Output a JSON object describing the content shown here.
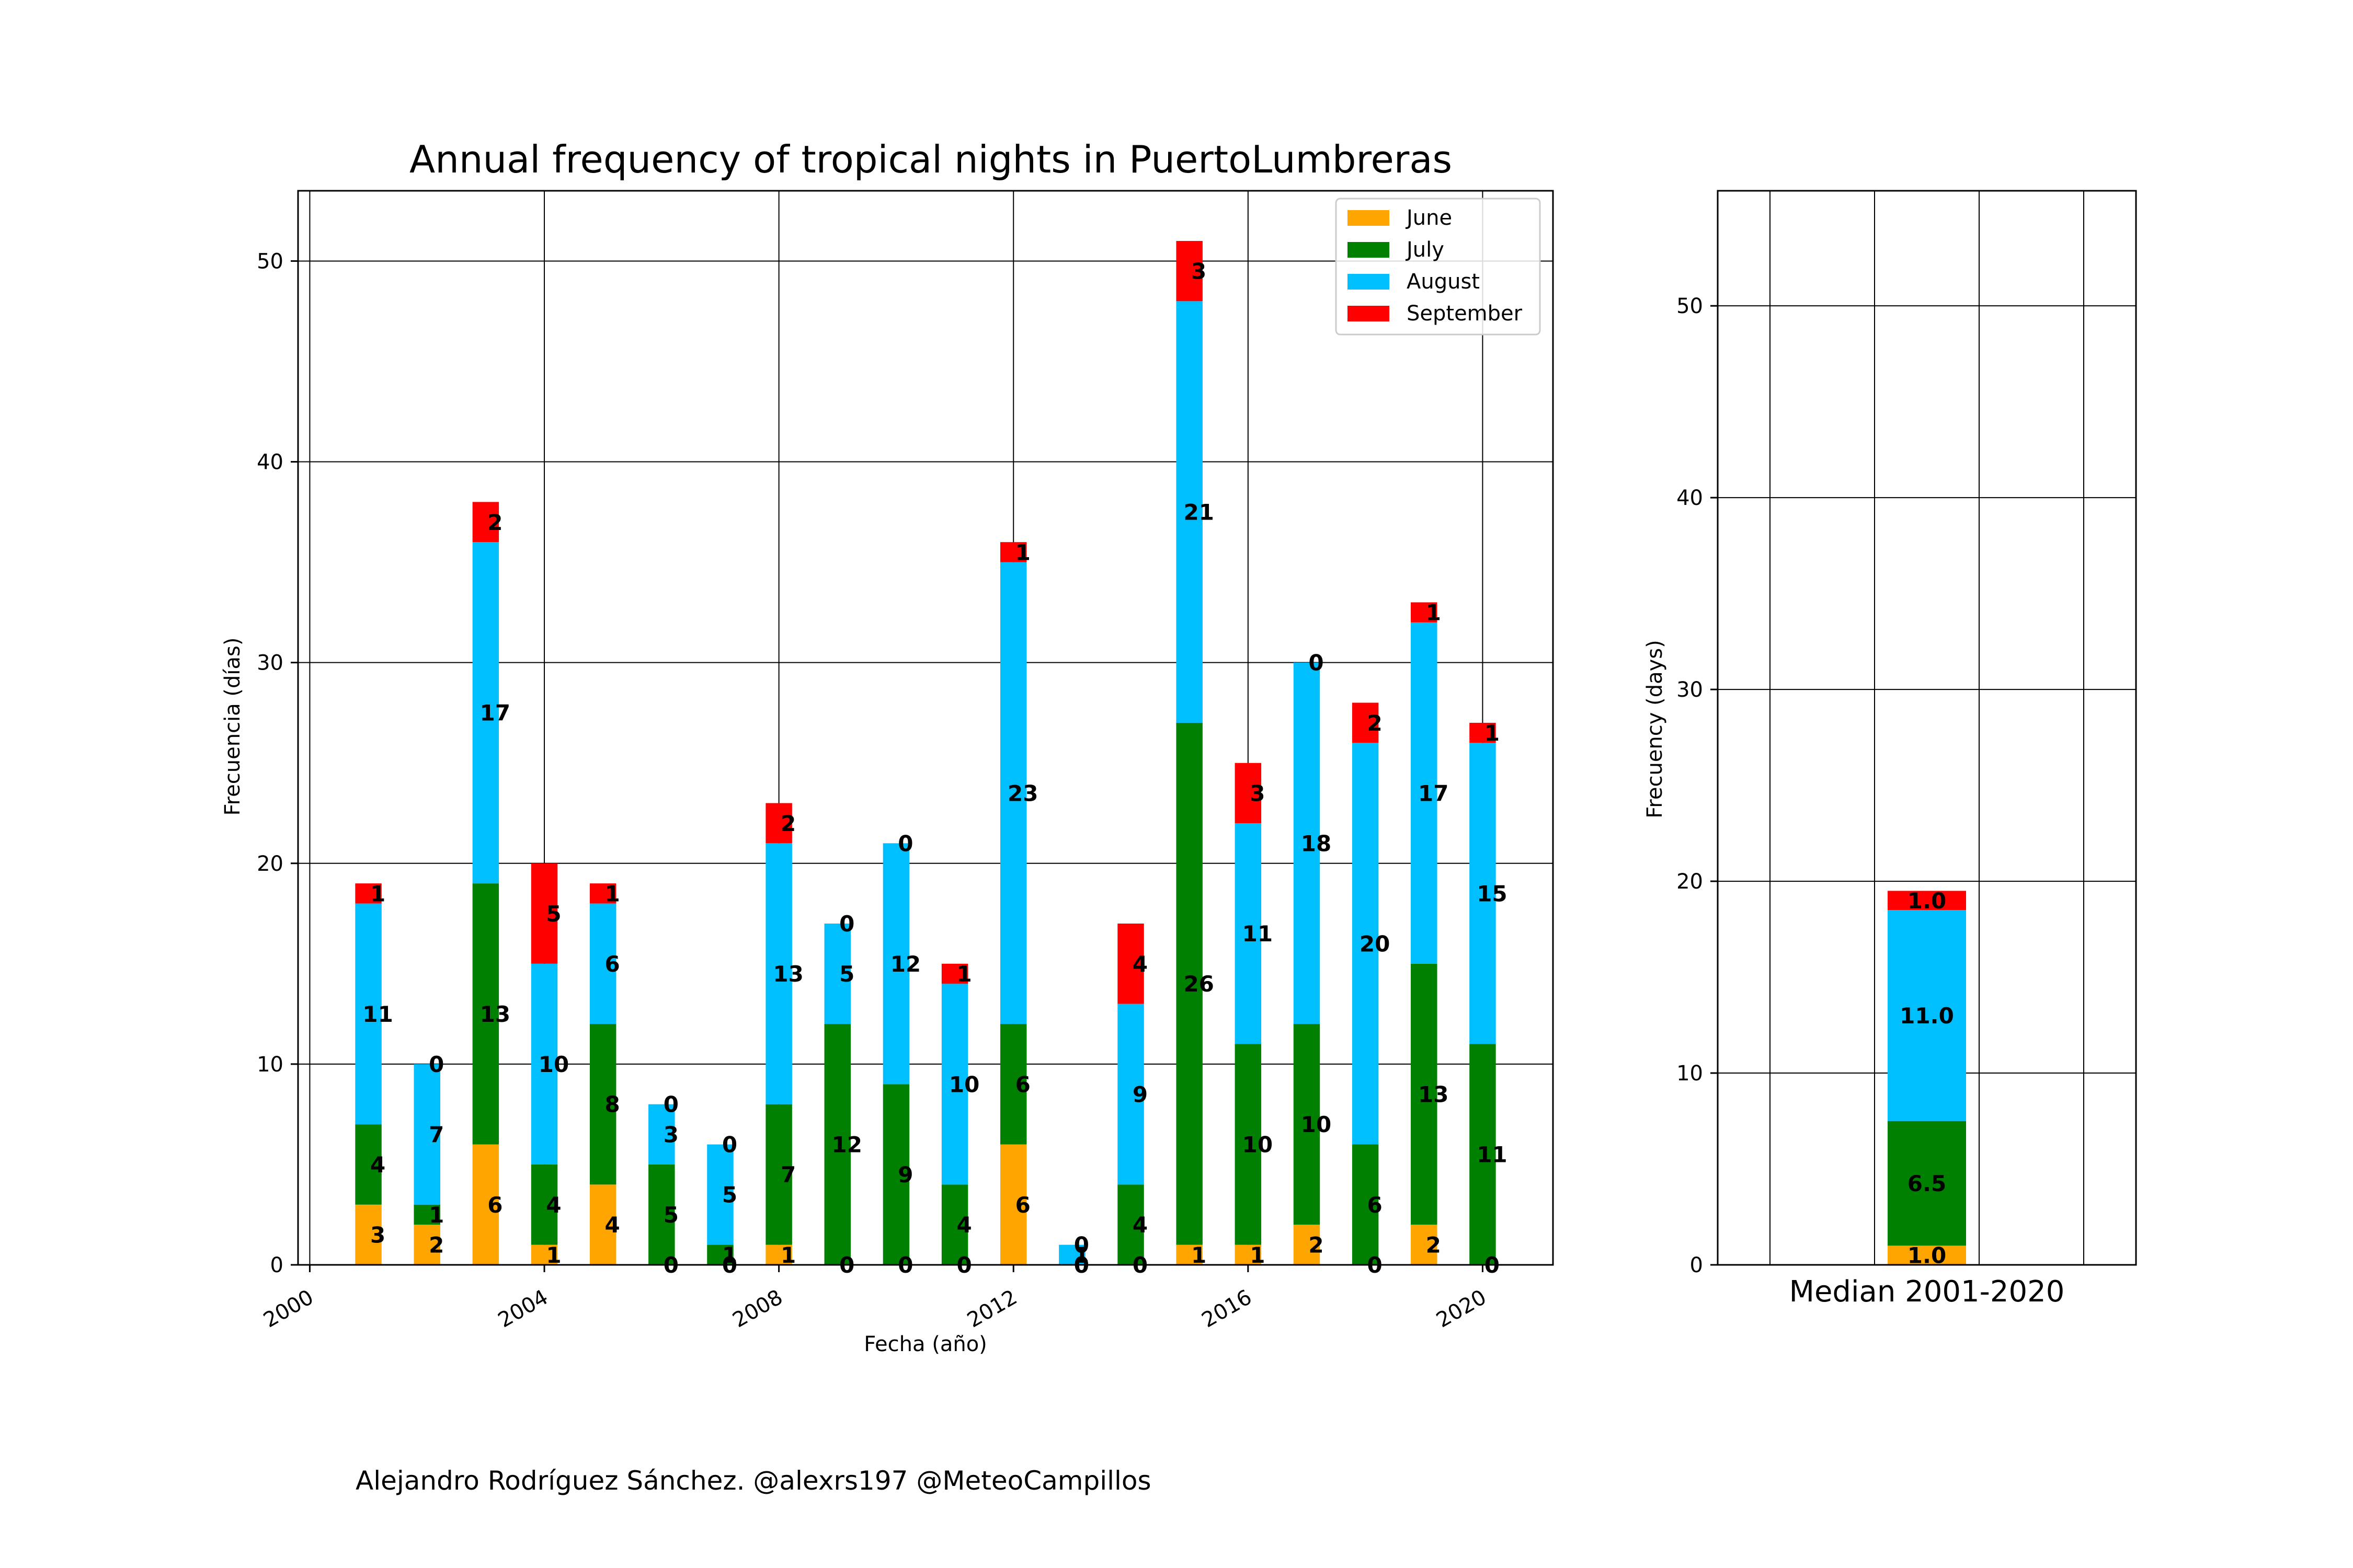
{
  "credit": "Alejandro Rodríguez Sánchez. @alexrs197 @MeteoCampillos",
  "colors": {
    "June": "#ffa500",
    "July": "#008000",
    "August": "#00bfff",
    "September": "#ff0000"
  },
  "chart_data": [
    {
      "type": "bar",
      "stacked": true,
      "title": "Annual frequency of tropical nights in PuertoLumbreras",
      "xlabel": "Fecha (año)",
      "ylabel": "Frecuencia (días)",
      "xlim": [
        1999.8,
        2021.2
      ],
      "ylim": [
        0,
        53.5
      ],
      "xticks": [
        2000,
        2004,
        2008,
        2012,
        2016,
        2020
      ],
      "yticks": [
        0,
        10,
        20,
        30,
        40,
        50
      ],
      "grid": true,
      "legend": "top-right",
      "x": [
        2001,
        2002,
        2003,
        2004,
        2005,
        2006,
        2007,
        2008,
        2009,
        2010,
        2011,
        2012,
        2013,
        2014,
        2015,
        2016,
        2017,
        2018,
        2019,
        2020
      ],
      "series": [
        {
          "name": "June",
          "values": [
            3,
            2,
            6,
            1,
            4,
            0,
            0,
            1,
            0,
            0,
            0,
            6,
            0,
            0,
            1,
            1,
            2,
            0,
            2,
            0
          ]
        },
        {
          "name": "July",
          "values": [
            4,
            1,
            13,
            4,
            8,
            5,
            1,
            7,
            12,
            9,
            4,
            6,
            0,
            4,
            26,
            10,
            10,
            6,
            13,
            11
          ]
        },
        {
          "name": "August",
          "values": [
            11,
            7,
            17,
            10,
            6,
            3,
            5,
            13,
            5,
            12,
            10,
            23,
            1,
            9,
            21,
            11,
            18,
            20,
            17,
            15
          ]
        },
        {
          "name": "September",
          "values": [
            1,
            0,
            2,
            5,
            1,
            0,
            0,
            2,
            0,
            0,
            1,
            1,
            0,
            4,
            3,
            3,
            0,
            2,
            1,
            1
          ]
        }
      ]
    },
    {
      "type": "bar",
      "stacked": true,
      "title": "",
      "xlabel": "Median 2001-2020",
      "ylabel": "Frecuency (days)",
      "ylim": [
        0,
        56
      ],
      "yticks": [
        0,
        10,
        20,
        30,
        40,
        50
      ],
      "grid": true,
      "categories": [
        "Median 2001-2020"
      ],
      "series": [
        {
          "name": "June",
          "values": [
            1.0
          ]
        },
        {
          "name": "July",
          "values": [
            6.5
          ]
        },
        {
          "name": "August",
          "values": [
            11.0
          ]
        },
        {
          "name": "September",
          "values": [
            1.0
          ]
        }
      ]
    }
  ]
}
